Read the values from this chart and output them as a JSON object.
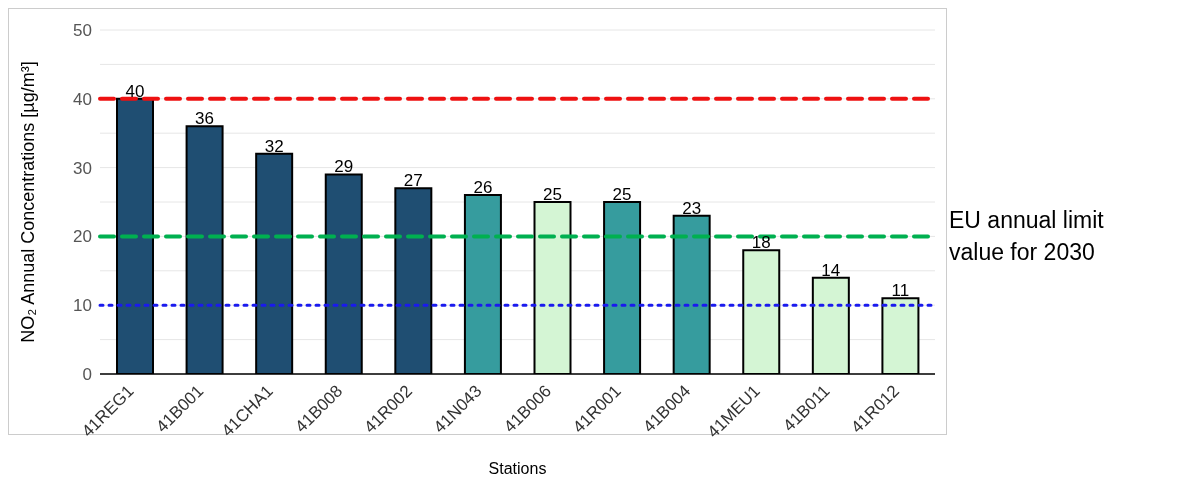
{
  "chart_data": {
    "type": "bar",
    "xlabel": "Stations",
    "ylabel": "NO₂ Annual Concentrations [µg/m³]",
    "categories": [
      "41REG1",
      "41B001",
      "41CHA1",
      "41B008",
      "41R002",
      "41N043",
      "41B006",
      "41R001",
      "41B004",
      "41MEU1",
      "41B011",
      "41R012"
    ],
    "values": [
      40,
      36,
      32,
      29,
      27,
      26,
      25,
      25,
      23,
      18,
      14,
      11
    ],
    "colors": [
      "#1f4e72",
      "#1f4e72",
      "#1f4e72",
      "#1f4e72",
      "#1f4e72",
      "#369c9e",
      "#d4f5d4",
      "#369c9e",
      "#369c9e",
      "#d4f5d4",
      "#d4f5d4",
      "#d4f5d4"
    ],
    "data_labels": true,
    "ylim": [
      0,
      50
    ],
    "yticks": [
      0,
      {
        "value": 5,
        "label": null
      },
      10,
      {
        "value": 15,
        "label": null
      },
      20,
      {
        "value": 25,
        "label": null
      },
      30,
      {
        "value": 35,
        "label": null
      },
      40,
      {
        "value": 45,
        "label": null
      },
      50
    ],
    "grid": "y",
    "ref_lines": [
      {
        "axis": "y",
        "value": 40,
        "color": "#ee1111",
        "line_style": "dashed"
      },
      {
        "axis": "y",
        "value": 20,
        "color": "#00b050",
        "line_style": "dashed",
        "label": "EU annual limit value for 2030"
      },
      {
        "axis": "y",
        "value": 10,
        "color": "#1a1aee",
        "line_style": "dotted"
      }
    ]
  }
}
